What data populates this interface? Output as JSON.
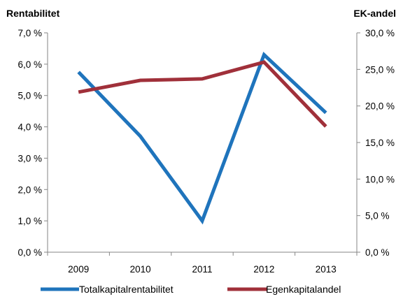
{
  "chart_data": {
    "type": "line",
    "categories": [
      "2009",
      "2010",
      "2011",
      "2012",
      "2013"
    ],
    "series": [
      {
        "name": "Totalkapitalrentabilitet",
        "axis": "left",
        "color": "#1F74BC",
        "values": [
          5.75,
          3.7,
          1.0,
          6.3,
          4.45
        ]
      },
      {
        "name": "Egenkapitalandel",
        "axis": "right",
        "color": "#A0303A",
        "values": [
          21.9,
          23.5,
          23.7,
          26.0,
          17.2
        ]
      }
    ],
    "y_left": {
      "title": "Rentabilitet",
      "ylim": [
        0,
        7
      ],
      "ticks": [
        0,
        1,
        2,
        3,
        4,
        5,
        6,
        7
      ],
      "tick_labels": [
        "0,0 %",
        "1,0 %",
        "2,0 %",
        "3,0 %",
        "4,0 %",
        "5,0 %",
        "6,0 %",
        "7,0 %"
      ]
    },
    "y_right": {
      "title": "EK-andel",
      "ylim": [
        0,
        30
      ],
      "ticks": [
        0,
        5,
        10,
        15,
        20,
        25,
        30
      ],
      "tick_labels": [
        "0,0 %",
        "5,0 %",
        "10,0 %",
        "15,0 %",
        "20,0 %",
        "25,0 %",
        "30,0 %"
      ]
    },
    "grid": false,
    "legend_position": "bottom"
  }
}
